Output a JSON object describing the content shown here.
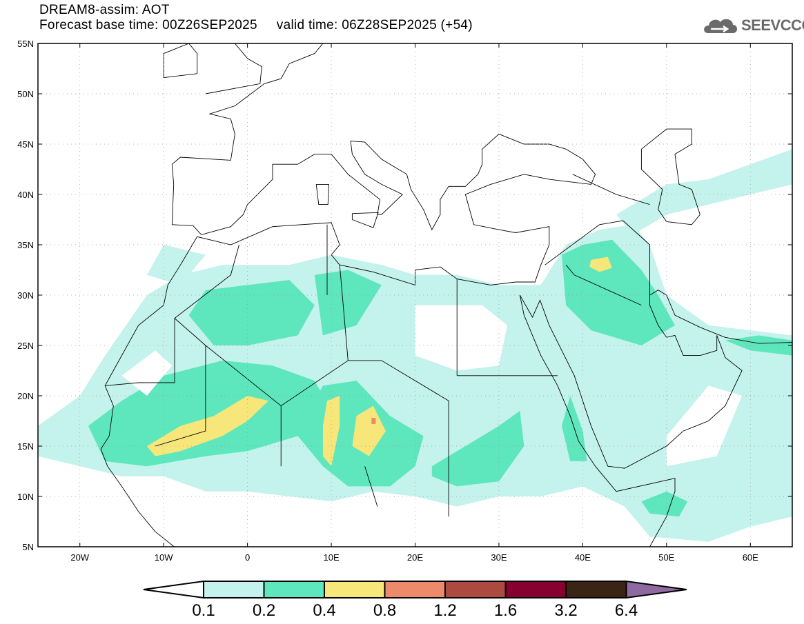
{
  "title": {
    "line1": "DREAM8-assim: AOT",
    "base_time": "Forecast base time: 00Z26SEP2025",
    "valid_time": "valid time: 06Z28SEP2025 (+54)"
  },
  "logo": {
    "text": "SEEVCCC"
  },
  "map": {
    "lon_range": [
      -25,
      65
    ],
    "lat_range": [
      5,
      55
    ],
    "lat_ticks": [
      {
        "v": 55,
        "l": "55N"
      },
      {
        "v": 50,
        "l": "50N"
      },
      {
        "v": 45,
        "l": "45N"
      },
      {
        "v": 40,
        "l": "40N"
      },
      {
        "v": 35,
        "l": "35N"
      },
      {
        "v": 30,
        "l": "30N"
      },
      {
        "v": 25,
        "l": "25N"
      },
      {
        "v": 20,
        "l": "20N"
      },
      {
        "v": 15,
        "l": "15N"
      },
      {
        "v": 10,
        "l": "10N"
      },
      {
        "v": 5,
        "l": "5N"
      }
    ],
    "lon_ticks": [
      {
        "v": -20,
        "l": "20W"
      },
      {
        "v": -10,
        "l": "10W"
      },
      {
        "v": 0,
        "l": "0"
      },
      {
        "v": 10,
        "l": "10E"
      },
      {
        "v": 20,
        "l": "20E"
      },
      {
        "v": 30,
        "l": "30E"
      },
      {
        "v": 40,
        "l": "40E"
      },
      {
        "v": 50,
        "l": "50E"
      },
      {
        "v": 60,
        "l": "60E"
      }
    ]
  },
  "legend": {
    "labels": [
      "0.1",
      "0.2",
      "0.4",
      "0.8",
      "1.2",
      "1.6",
      "3.2",
      "6.4"
    ],
    "colors": [
      "#c4f2ec",
      "#5ee6bc",
      "#f7e77a",
      "#ec8a6a",
      "#ad4a40",
      "#860030",
      "#3c2414"
    ],
    "under_color": "#ffffff",
    "over_color": "#8e6aa0"
  }
}
